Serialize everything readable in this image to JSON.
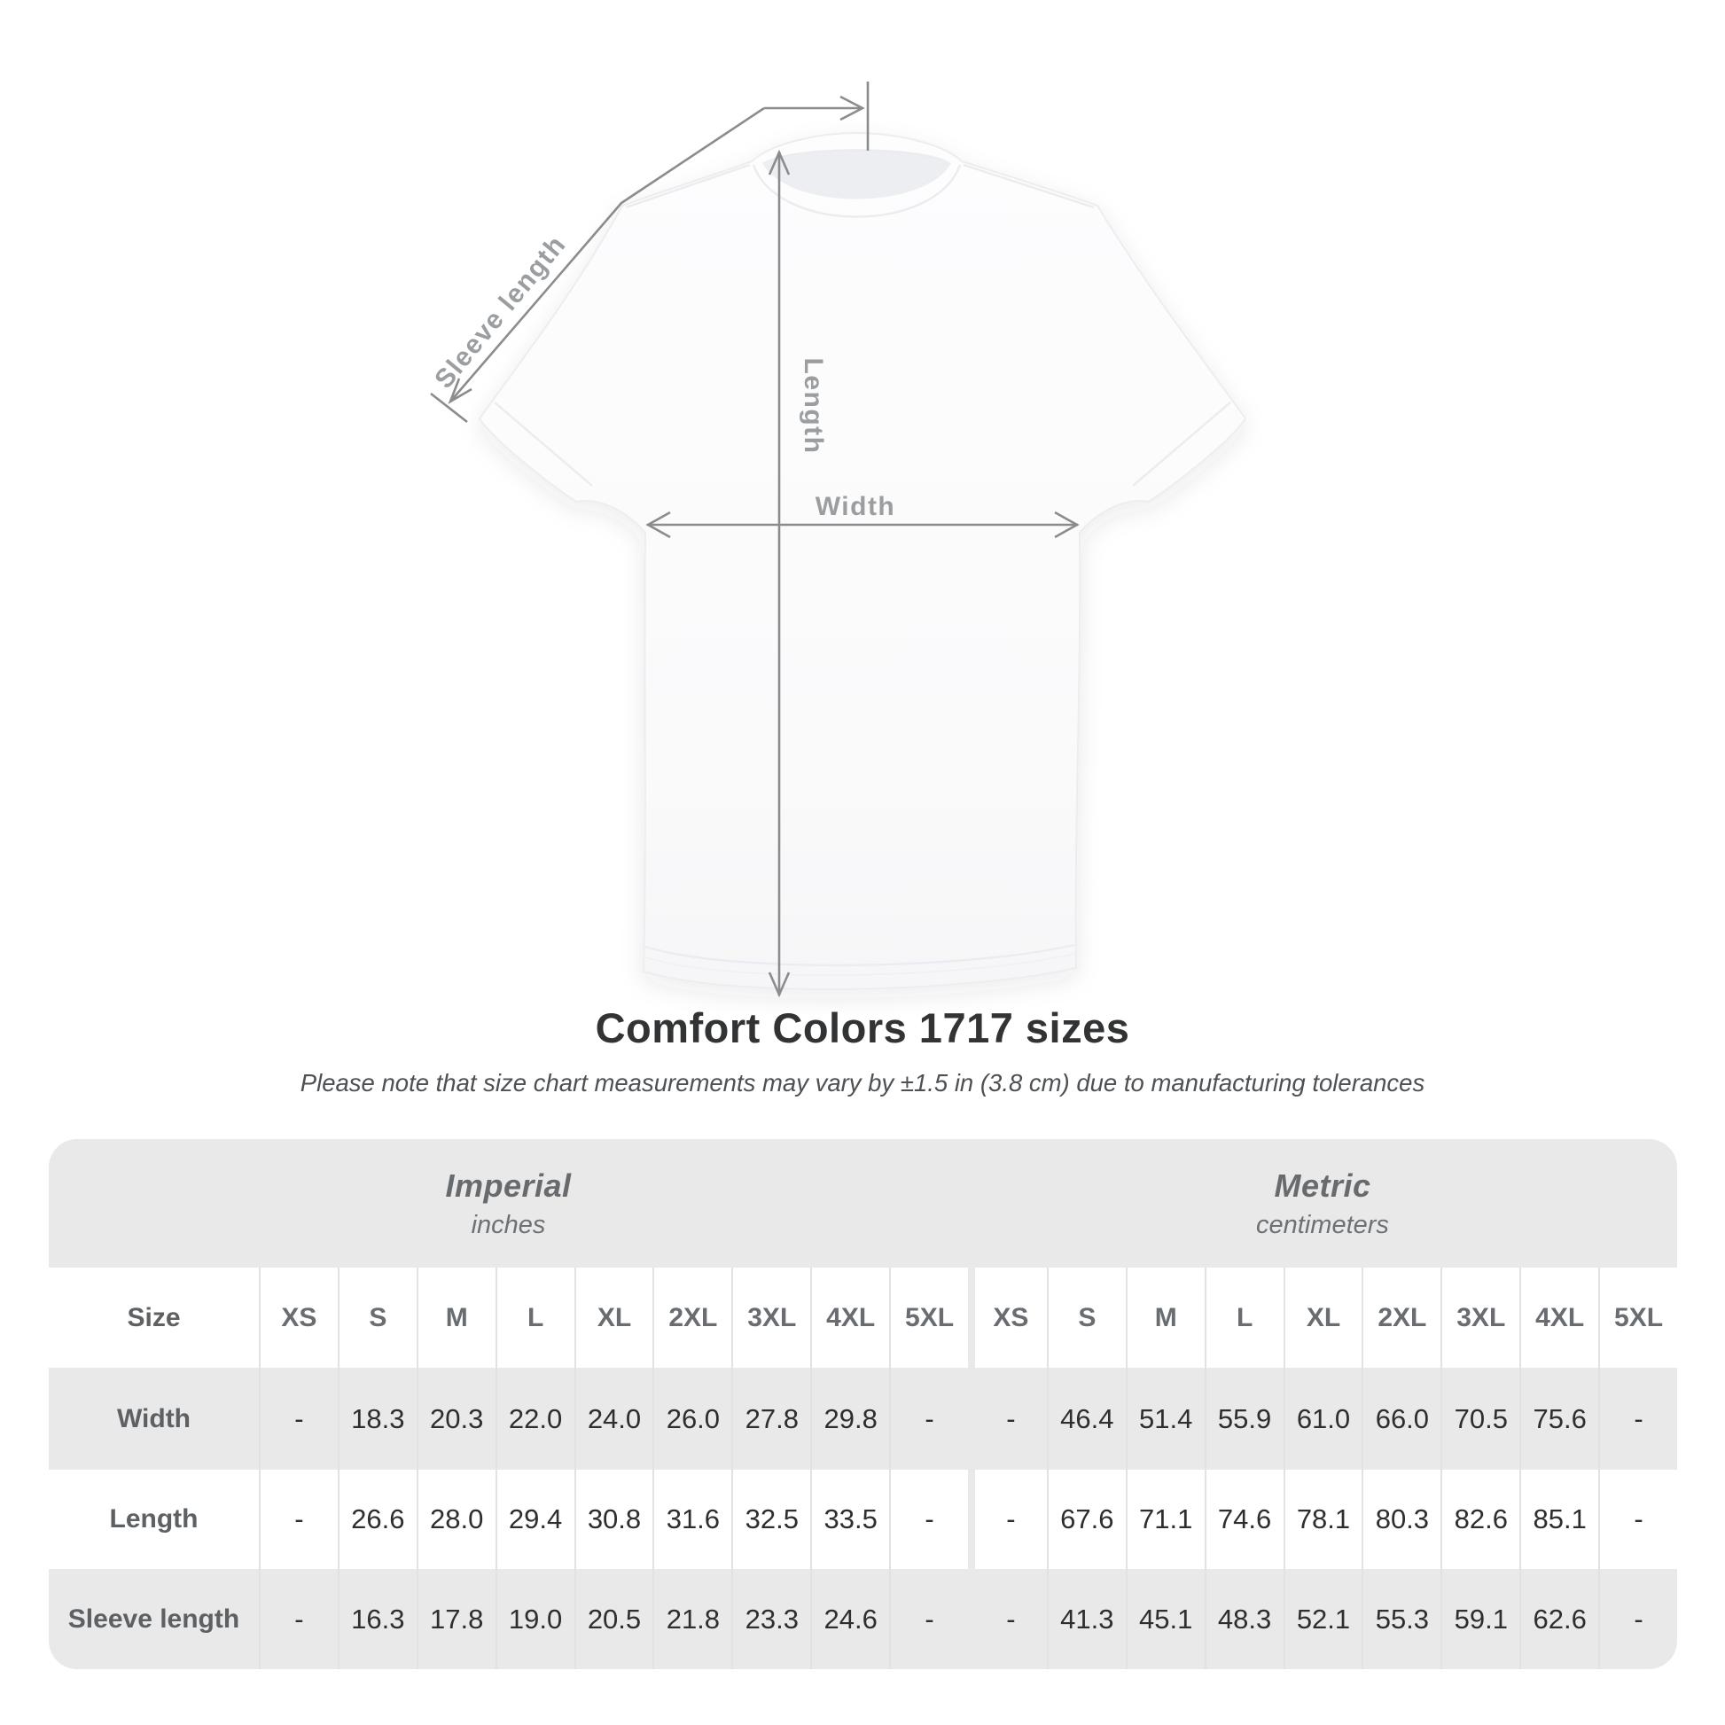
{
  "diagram": {
    "sleeve_label": "Sleeve length",
    "length_label": "Length",
    "width_label": "Width"
  },
  "title": "Comfort Colors 1717 sizes",
  "subtitle": "Please note that size chart measurements may vary by ±1.5 in (3.8 cm) due to manufacturing tolerances",
  "table": {
    "size_label": "Size",
    "groups": [
      {
        "name": "Imperial",
        "unit": "inches"
      },
      {
        "name": "Metric",
        "unit": "centimeters"
      }
    ],
    "sizes": [
      "XS",
      "S",
      "M",
      "L",
      "XL",
      "2XL",
      "3XL",
      "4XL",
      "5XL"
    ],
    "rows": [
      {
        "label": "Width",
        "imperial": [
          "-",
          "18.3",
          "20.3",
          "22.0",
          "24.0",
          "26.0",
          "27.8",
          "29.8",
          "-"
        ],
        "metric": [
          "-",
          "46.4",
          "51.4",
          "55.9",
          "61.0",
          "66.0",
          "70.5",
          "75.6",
          "-"
        ]
      },
      {
        "label": "Length",
        "imperial": [
          "-",
          "26.6",
          "28.0",
          "29.4",
          "30.8",
          "31.6",
          "32.5",
          "33.5",
          "-"
        ],
        "metric": [
          "-",
          "67.6",
          "71.1",
          "74.6",
          "78.1",
          "80.3",
          "82.6",
          "85.1",
          "-"
        ]
      },
      {
        "label": "Sleeve length",
        "imperial": [
          "-",
          "16.3",
          "17.8",
          "19.0",
          "20.5",
          "21.8",
          "23.3",
          "24.6",
          "-"
        ],
        "metric": [
          "-",
          "41.3",
          "45.1",
          "48.3",
          "52.1",
          "55.3",
          "59.1",
          "62.6",
          "-"
        ]
      }
    ]
  },
  "colors": {
    "row_gray": "#e9e9ea",
    "separator": "#e2e2e5",
    "arrow_gray": "#8a8c8e",
    "diagram_label_gray": "#9b9ea1",
    "title_dark": "#313335"
  }
}
